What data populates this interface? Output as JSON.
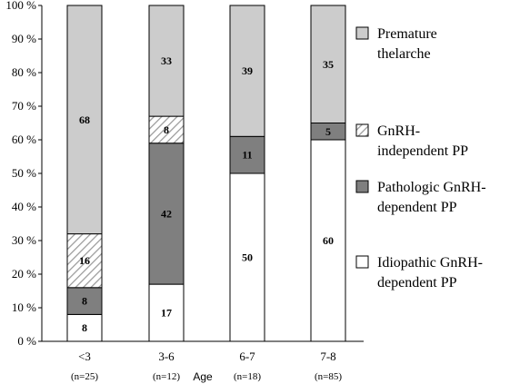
{
  "chart_data": {
    "type": "bar",
    "stacked": true,
    "categories": [
      "<3",
      "3-6",
      "6-7",
      "7-8"
    ],
    "category_notes": [
      "(n=25)",
      "(n=12)",
      "(n=18)",
      "(n=85)"
    ],
    "xlabel": "Age",
    "ylabel": "",
    "ylim": [
      0,
      100
    ],
    "yticks": [
      "0 %",
      "10 %",
      "20 %",
      "30 %",
      "40 %",
      "50 %",
      "60 %",
      "70 %",
      "80 %",
      "90 %",
      "100 %"
    ],
    "series": [
      {
        "name_lines": [
          "Idiopathic GnRH-",
          "dependent PP"
        ],
        "values": [
          8,
          17,
          50,
          60
        ],
        "fill": "#ffffff",
        "pattern": "solid"
      },
      {
        "name_lines": [
          "Pathologic GnRH-",
          "dependent PP"
        ],
        "values": [
          8,
          42,
          11,
          5
        ],
        "fill": "#7f7f7f",
        "pattern": "solid"
      },
      {
        "name_lines": [
          "GnRH-",
          "independent PP"
        ],
        "values": [
          16,
          8,
          0,
          0
        ],
        "fill": "#ffffff",
        "pattern": "hatch"
      },
      {
        "name_lines": [
          "Premature",
          "thelarche"
        ],
        "values": [
          68,
          33,
          39,
          35
        ],
        "fill": "#cccccc",
        "pattern": "solid"
      }
    ],
    "legend_position": "right",
    "grid": false
  }
}
